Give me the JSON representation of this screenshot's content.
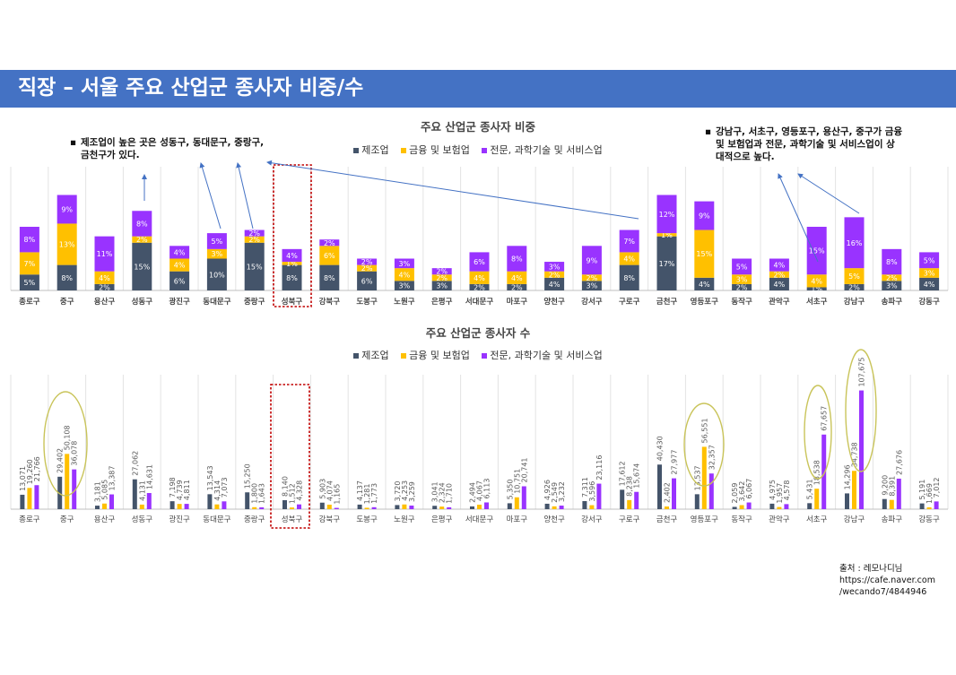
{
  "page": {
    "title": "직장 – 서울 주요 산업군 종사자 비중/수"
  },
  "legend": [
    {
      "label": "제조업",
      "color": "#44546a"
    },
    {
      "label": "금융 및 보험업",
      "color": "#ffc000"
    },
    {
      "label": "전문, 과학기술 및 서비스업",
      "color": "#9933ff"
    }
  ],
  "notes": {
    "left": [
      "제조업이 높은 곳은 성동구, 동대문구, 중랑구,",
      "금천구가 있다."
    ],
    "right": [
      "강남구, 서초구, 영등포구, 용산구, 중구가 금융",
      "및 보험업과 전문, 과학기술 및 서비스업이 상",
      "대적으로 높다."
    ]
  },
  "source": [
    "출처 : 레모나디님",
    "https://cafe.naver.com",
    "/wecando7/4844946"
  ],
  "chart_data": [
    {
      "type": "bar",
      "stacked": true,
      "title": "주요 산업군 종사자 비중",
      "categories": [
        "종로구",
        "중구",
        "용산구",
        "성동구",
        "광진구",
        "동대문구",
        "중랑구",
        "성북구",
        "강북구",
        "도봉구",
        "노원구",
        "은평구",
        "서대문구",
        "마포구",
        "양천구",
        "강서구",
        "구로구",
        "금천구",
        "영등포구",
        "동작구",
        "관악구",
        "서초구",
        "강남구",
        "송파구",
        "강동구"
      ],
      "series": [
        {
          "name": "제조업",
          "values": [
            5,
            8,
            2,
            15,
            6,
            10,
            15,
            8,
            8,
            6,
            3,
            3,
            2,
            2,
            4,
            3,
            8,
            17,
            4,
            2,
            4,
            1,
            2,
            3,
            4
          ],
          "labels": [
            "5%",
            "8%",
            "2%",
            "15%",
            "6%",
            "10%",
            "15%",
            "8%",
            "8%",
            "6%",
            "3%",
            "3%",
            "2%",
            "2%",
            "4%",
            "3%",
            "8%",
            "17%",
            "4%",
            "2%",
            "4%",
            "1%",
            "2%",
            "3%",
            "4%"
          ]
        },
        {
          "name": "금융 및 보험업",
          "values": [
            7,
            13,
            4,
            2,
            4,
            3,
            2,
            1,
            6,
            2,
            4,
            2,
            4,
            4,
            2,
            2,
            4,
            1,
            15,
            3,
            2,
            4,
            5,
            2,
            3
          ],
          "labels": [
            "7%",
            "13%",
            "4%",
            "2%",
            "4%",
            "3%",
            "2%",
            "1%",
            "6%",
            "2%",
            "4%",
            "2%",
            "4%",
            "4%",
            "2%",
            "2%",
            "4%",
            "1%",
            "15%",
            "3%",
            "2%",
            "4%",
            "5%",
            "2%",
            "3%"
          ]
        },
        {
          "name": "전문, 과학기술 및 서비스업",
          "values": [
            8,
            9,
            11,
            8,
            4,
            5,
            2,
            4,
            2,
            2,
            3,
            2,
            6,
            8,
            3,
            9,
            7,
            12,
            9,
            5,
            4,
            15,
            16,
            8,
            5
          ],
          "labels": [
            "8%",
            "9%",
            "11%",
            "8%",
            "4%",
            "5%",
            "2%",
            "4%",
            "2%",
            "2%",
            "3%",
            "2%",
            "6%",
            "8%",
            "3%",
            "9%",
            "7%",
            "12%",
            "9%",
            "5%",
            "4%",
            "15%",
            "16%",
            "8%",
            "5%"
          ]
        }
      ]
    },
    {
      "type": "bar",
      "stacked": false,
      "title": "주요 산업군 종사자 수",
      "categories": [
        "종로구",
        "중구",
        "용산구",
        "성동구",
        "광진구",
        "동대문구",
        "중랑구",
        "성북구",
        "강북구",
        "도봉구",
        "노원구",
        "은평구",
        "서대문구",
        "마포구",
        "양천구",
        "강서구",
        "구로구",
        "금천구",
        "영등포구",
        "동작구",
        "관악구",
        "서초구",
        "강남구",
        "송파구",
        "강동구"
      ],
      "series": [
        {
          "name": "제조업",
          "values": [
            13071,
            29402,
            3181,
            27062,
            7198,
            13543,
            15250,
            8140,
            5903,
            4137,
            3720,
            3041,
            2494,
            5350,
            4926,
            7311,
            17612,
            40430,
            13537,
            2059,
            4975,
            5431,
            14296,
            9200,
            5191
          ],
          "labels": [
            "13,071",
            "29,402",
            "3,181",
            "27,062",
            "7,198",
            "13,543",
            "15,250",
            "8,140",
            "5,903",
            "4,137",
            "3,720",
            "3,041",
            "2,494",
            "5,350",
            "4,926",
            "7,311",
            "17,612",
            "40,430",
            "13,537",
            "2,059",
            "4,975",
            "5,431",
            "14,296",
            "9,200",
            "5,191"
          ]
        },
        {
          "name": "금융 및 보험업",
          "values": [
            19260,
            50108,
            5085,
            4131,
            4739,
            4314,
            1800,
            1512,
            4074,
            1281,
            4253,
            2324,
            4067,
            10751,
            2549,
            3596,
            8238,
            2402,
            56551,
            3642,
            1957,
            18538,
            34738,
            8391,
            1669
          ],
          "labels": [
            "19,260",
            "50,108",
            "5,085",
            "4,131",
            "4,739",
            "4,314",
            "1,800",
            "1,512",
            "4,074",
            "1,281",
            "4,253",
            "2,324",
            "4,067",
            "10,751",
            "2,549",
            "3,596",
            "8,238",
            "2,402",
            "56,551",
            "3,642",
            "1,957",
            "18,538",
            "34,738",
            "8,391",
            "1,669"
          ]
        },
        {
          "name": "전문, 과학기술 및 서비스업",
          "values": [
            21766,
            36078,
            13387,
            14631,
            4811,
            7073,
            1643,
            4328,
            1165,
            1773,
            3259,
            1710,
            6113,
            20741,
            3232,
            23116,
            15674,
            27977,
            32357,
            6067,
            4578,
            67657,
            107675,
            27676,
            7012
          ],
          "labels": [
            "21,766",
            "36,078",
            "13,387",
            "14,631",
            "4,811",
            "7,073",
            "1,643",
            "4,328",
            "1,165",
            "1,773",
            "3,259",
            "1,710",
            "6,113",
            "20,741",
            "3,232",
            "23,116",
            "15,674",
            "27,977",
            "32,357",
            "6,067",
            "4,578",
            "67,657",
            "107,675",
            "27,676",
            "7,012"
          ]
        }
      ]
    }
  ]
}
